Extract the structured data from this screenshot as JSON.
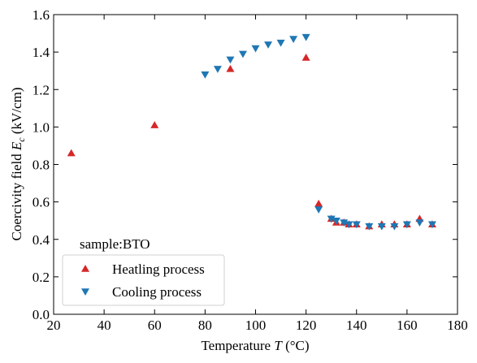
{
  "chart_data": {
    "type": "scatter",
    "xlabel": "Temperature",
    "xlabel_symbol": "T",
    "xlabel_unit": "(°C)",
    "ylabel": "Coercivity field",
    "ylabel_symbol": "E",
    "ylabel_subscript": "c",
    "ylabel_unit": "(kV/cm)",
    "xlim": [
      20,
      180
    ],
    "ylim": [
      0.0,
      1.6
    ],
    "xticks": [
      "20",
      "40",
      "60",
      "80",
      "100",
      "120",
      "140",
      "160",
      "180"
    ],
    "yticks": [
      "0.0",
      "0.2",
      "0.4",
      "0.6",
      "0.8",
      "1.0",
      "1.2",
      "1.4",
      "1.6"
    ],
    "grid": false,
    "legend_title": "sample:BTO",
    "legend_position": "lower-left",
    "series": [
      {
        "name": "Heatling process",
        "marker": "triangle-up",
        "color": "#d62728",
        "points": [
          [
            27,
            0.86
          ],
          [
            60,
            1.01
          ],
          [
            90,
            1.31
          ],
          [
            120,
            1.37
          ],
          [
            125,
            0.59
          ],
          [
            130,
            0.51
          ],
          [
            132,
            0.49
          ],
          [
            135,
            0.49
          ],
          [
            137,
            0.48
          ],
          [
            140,
            0.48
          ],
          [
            145,
            0.47
          ],
          [
            150,
            0.48
          ],
          [
            155,
            0.48
          ],
          [
            160,
            0.48
          ],
          [
            165,
            0.51
          ],
          [
            170,
            0.48
          ]
        ]
      },
      {
        "name": "Cooling process",
        "marker": "triangle-down",
        "color": "#1f77b4",
        "points": [
          [
            80,
            1.28
          ],
          [
            85,
            1.31
          ],
          [
            90,
            1.36
          ],
          [
            95,
            1.39
          ],
          [
            100,
            1.42
          ],
          [
            105,
            1.44
          ],
          [
            110,
            1.45
          ],
          [
            115,
            1.47
          ],
          [
            120,
            1.48
          ],
          [
            125,
            0.56
          ],
          [
            130,
            0.51
          ],
          [
            132,
            0.5
          ],
          [
            135,
            0.49
          ],
          [
            137,
            0.48
          ],
          [
            140,
            0.48
          ],
          [
            145,
            0.47
          ],
          [
            150,
            0.47
          ],
          [
            155,
            0.47
          ],
          [
            160,
            0.48
          ],
          [
            165,
            0.49
          ],
          [
            170,
            0.48
          ]
        ]
      }
    ]
  }
}
